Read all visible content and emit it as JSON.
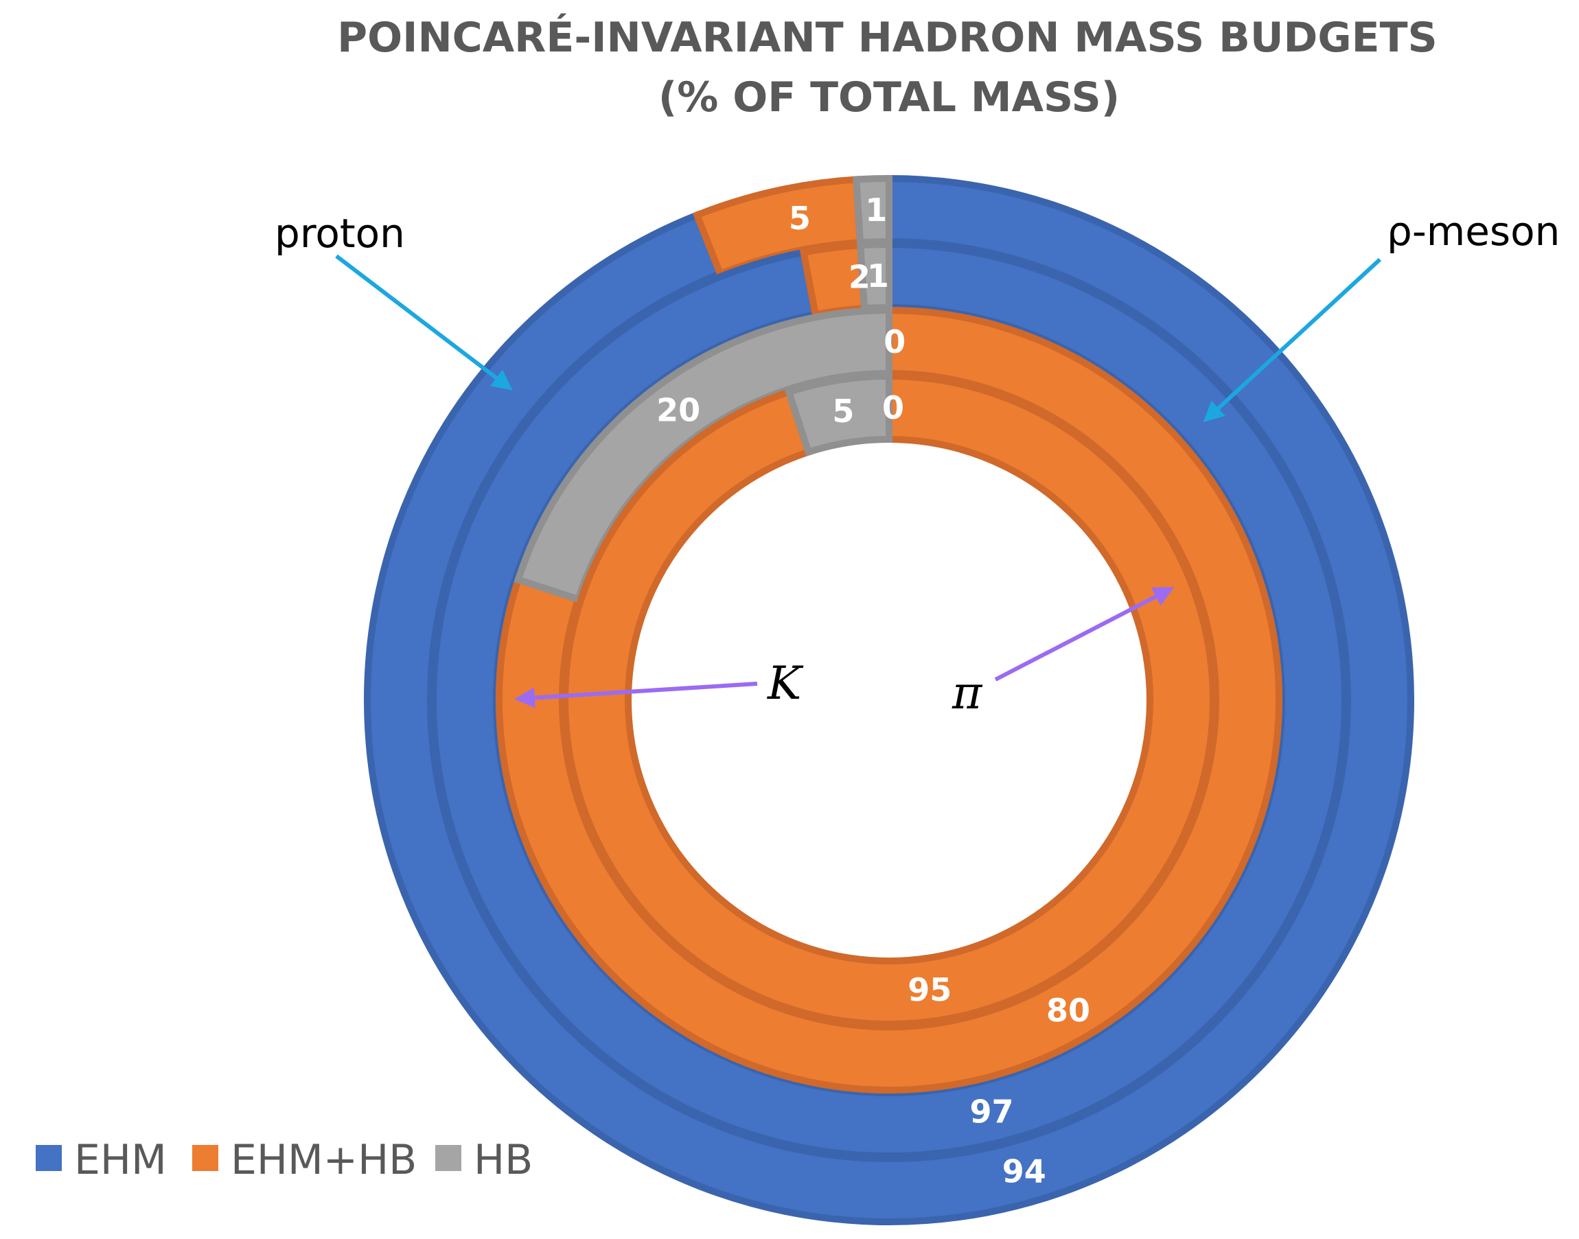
{
  "chart_data": {
    "type": "doughnut",
    "title_lines": [
      "POINCARÉ-INVARIANT HADRON MASS BUDGETS",
      "(% OF TOTAL MASS)"
    ],
    "legend_position": "bottom-left",
    "categories": [
      "EHM",
      "EHM+HB",
      "HB"
    ],
    "colors": {
      "EHM": "#4472C4",
      "EHM+HB": "#ED7D31",
      "HB": "#A5A5A5"
    },
    "rings": [
      {
        "hadron": "proton",
        "values": [
          94,
          5,
          1
        ],
        "labels": [
          "94",
          "5",
          "1"
        ]
      },
      {
        "hadron": "ρ-meson",
        "values": [
          97,
          2,
          1
        ],
        "labels": [
          "97",
          "2",
          "1"
        ]
      },
      {
        "hadron": "K",
        "values": [
          0,
          80,
          20
        ],
        "labels": [
          "0",
          "80",
          "20"
        ]
      },
      {
        "hadron": "π",
        "values": [
          0,
          95,
          5
        ],
        "labels": [
          "0",
          "95",
          "5"
        ]
      }
    ],
    "annotations": [
      {
        "text": "proton",
        "style": "plain"
      },
      {
        "text": "ρ-meson",
        "style": "rho"
      },
      {
        "text": "K",
        "style": "italic"
      },
      {
        "text": "π",
        "style": "italic"
      }
    ]
  }
}
